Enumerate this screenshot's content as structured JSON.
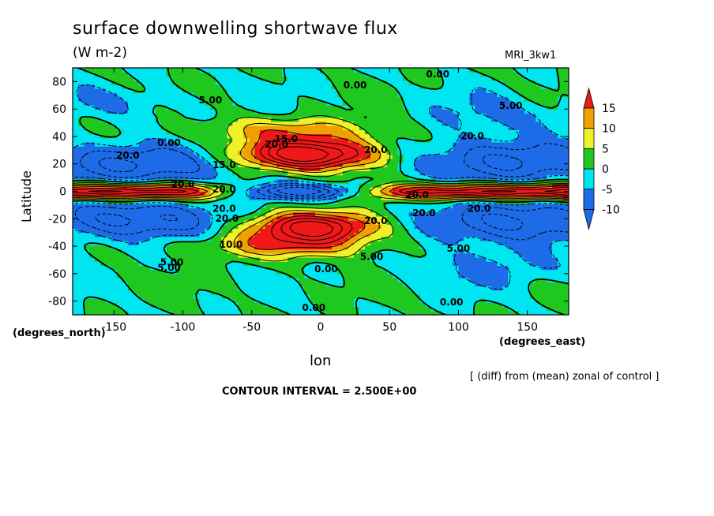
{
  "figure": {
    "title": "surface downwelling shortwave flux",
    "units": "(W m-2)",
    "model": "MRI_3kw1",
    "y_axis_label": "Latitude",
    "y_axis_units": "(degrees_north)",
    "x_axis_label": "lon",
    "x_axis_units": "(degrees_east)",
    "difference_note": "[ (diff) from (mean) zonal of control ]",
    "contour_interval": "CONTOUR INTERVAL = 2.500E+00"
  },
  "chart_data": {
    "type": "heatmap",
    "title": "surface downwelling shortwave flux",
    "units": "W m-2",
    "xlabel": "lon",
    "ylabel": "Latitude",
    "xlim": [
      -180,
      180
    ],
    "ylim": [
      -90,
      90
    ],
    "x_ticks": [
      -150,
      -100,
      -50,
      0,
      50,
      100,
      150
    ],
    "x_tick_labels": [
      "-150",
      "-100",
      "-50",
      "0",
      "50",
      "100",
      "150"
    ],
    "y_ticks": [
      -80,
      -60,
      -40,
      -20,
      0,
      20,
      40,
      60,
      80
    ],
    "y_tick_labels": [
      "-80",
      "-60",
      "-40",
      "-20",
      "0",
      "20",
      "40",
      "60",
      "80"
    ],
    "color_levels": [
      -10,
      -5,
      0,
      5,
      10,
      15
    ],
    "colorbar_labels": [
      "15",
      "10",
      "5",
      "0",
      "-5",
      "-10"
    ],
    "colors": {
      "below_-10": "#1e6be8",
      "-10_to_-5": "#1e6be8",
      "-5_to_0": "#00e6f0",
      "0_to_5": "#1ec81e",
      "5_to_10": "#f0f028",
      "10_to_15": "#f0a000",
      "above_15": "#f01818"
    },
    "contour_interval": 2.5,
    "contour_labels": [
      {
        "text": "0.00",
        "lon": 25,
        "lat": 75
      },
      {
        "text": "0.00",
        "lon": 85,
        "lat": 83
      },
      {
        "text": "5.00",
        "lon": -80,
        "lat": 64
      },
      {
        "text": "5.00",
        "lon": 138,
        "lat": 60
      },
      {
        "text": "0.00",
        "lon": -110,
        "lat": 33
      },
      {
        "text": "20.0",
        "lon": -140,
        "lat": 24
      },
      {
        "text": "15.0",
        "lon": -70,
        "lat": 17
      },
      {
        "text": "20.0",
        "lon": -32,
        "lat": 32
      },
      {
        "text": "15.0",
        "lon": -25,
        "lat": 36
      },
      {
        "text": "20.0",
        "lon": 40,
        "lat": 28
      },
      {
        "text": "20.0",
        "lon": 110,
        "lat": 38
      },
      {
        "text": "20.0",
        "lon": -100,
        "lat": 3
      },
      {
        "text": "20.0",
        "lon": -70,
        "lat": -1
      },
      {
        "text": "20.0",
        "lon": 70,
        "lat": -5
      },
      {
        "text": "20.0",
        "lon": 115,
        "lat": -15
      },
      {
        "text": "20.0",
        "lon": -70,
        "lat": -15
      },
      {
        "text": "20.0",
        "lon": -68,
        "lat": -22
      },
      {
        "text": "20.0",
        "lon": 40,
        "lat": -24
      },
      {
        "text": "20.0",
        "lon": 75,
        "lat": -18
      },
      {
        "text": "10.0",
        "lon": -65,
        "lat": -41
      },
      {
        "text": "5.00",
        "lon": -108,
        "lat": -54
      },
      {
        "text": "5.00",
        "lon": -110,
        "lat": -58
      },
      {
        "text": "5.00",
        "lon": 37,
        "lat": -50
      },
      {
        "text": "5.00",
        "lon": 100,
        "lat": -44
      },
      {
        "text": "0.00",
        "lon": 4,
        "lat": -59
      },
      {
        "text": "0.00",
        "lon": 95,
        "lat": -83
      },
      {
        "text": "0.00",
        "lon": -5,
        "lat": -87
      }
    ]
  }
}
